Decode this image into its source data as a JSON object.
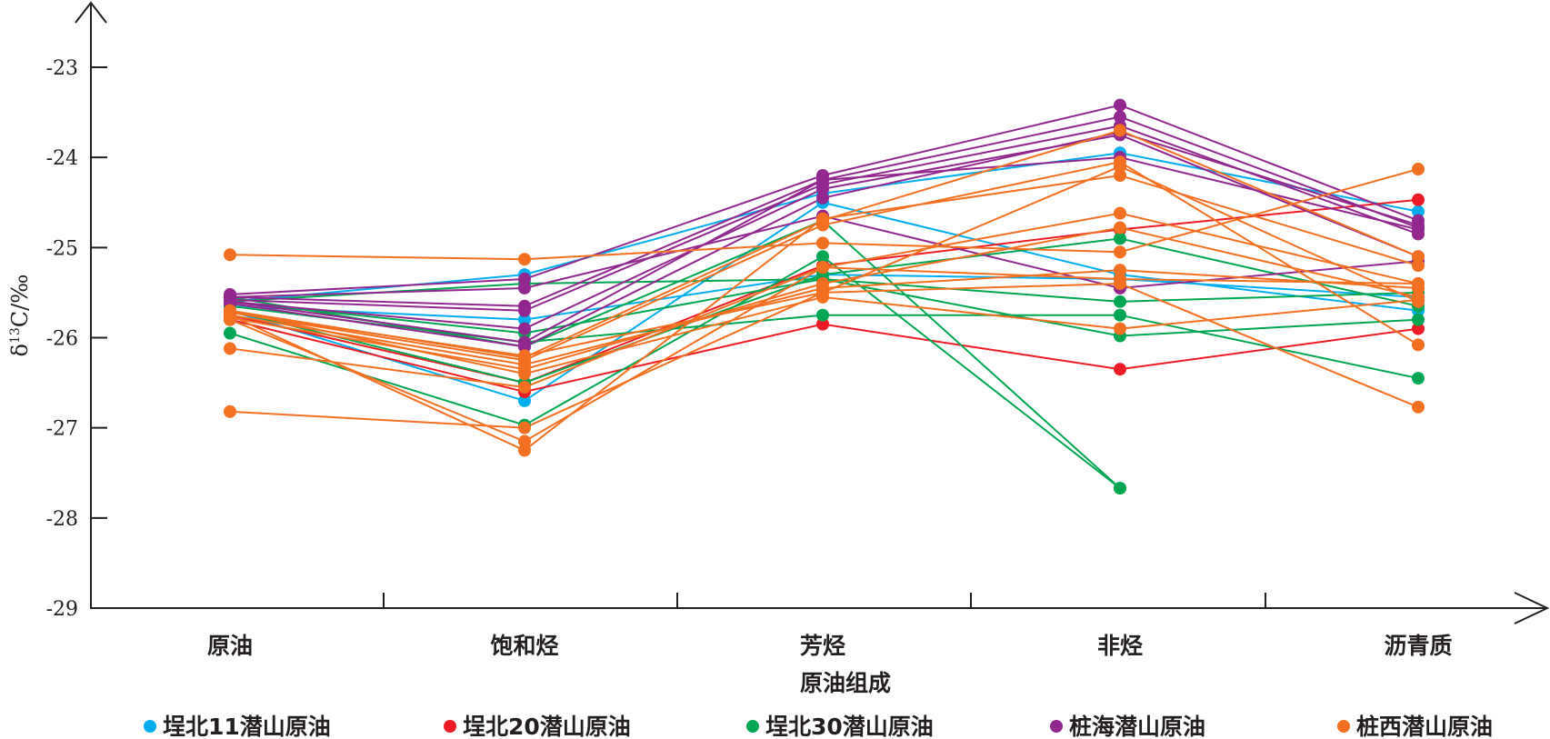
{
  "chart_data": {
    "type": "line",
    "xlabel": "原油组成",
    "ylabel": {
      "delta": "δ",
      "sup": "13",
      "rest": "C/‰"
    },
    "ylim": [
      -29,
      -22.4
    ],
    "yticks": [
      -29,
      -28,
      -27,
      -26,
      -25,
      -24,
      -23
    ],
    "categories": [
      "原油",
      "饱和烃",
      "芳烃",
      "非烃",
      "沥青质"
    ],
    "legend_position": "bottom",
    "grid": false,
    "groups": [
      {
        "name": "埕北11潜山原油",
        "color": "#00aeef"
      },
      {
        "name": "埕北20潜山原油",
        "color": "#ed1c24"
      },
      {
        "name": "埕北30潜山原油",
        "color": "#00a651"
      },
      {
        "name": "桩海潜山原油",
        "color": "#92278f"
      },
      {
        "name": "桩西潜山原油",
        "color": "#f37021"
      }
    ],
    "series": [
      {
        "group": 0,
        "values": [
          -25.6,
          -25.3,
          -24.4,
          -23.95,
          -24.6
        ]
      },
      {
        "group": 0,
        "values": [
          -25.7,
          -26.7,
          -24.5,
          -25.3,
          -25.7
        ]
      },
      {
        "group": 0,
        "values": [
          -25.65,
          -25.8,
          -25.3,
          -25.35,
          -25.55
        ]
      },
      {
        "group": 1,
        "values": [
          -25.8,
          -26.6,
          -25.85,
          -26.35,
          -25.9
        ]
      },
      {
        "group": 1,
        "values": [
          -25.75,
          -26.5,
          -25.2,
          -24.8,
          -24.47
        ]
      },
      {
        "group": 2,
        "values": [
          -25.95,
          -26.97,
          -25.1,
          -27.67,
          null
        ]
      },
      {
        "group": 2,
        "values": [
          -25.55,
          -26.1,
          -24.7,
          -27.67,
          null
        ]
      },
      {
        "group": 2,
        "values": [
          -25.6,
          -25.95,
          -25.35,
          -25.6,
          -25.5
        ]
      },
      {
        "group": 2,
        "values": [
          -25.65,
          -26.05,
          -25.75,
          -25.75,
          -26.45
        ]
      },
      {
        "group": 2,
        "values": [
          -25.7,
          -26.5,
          -25.3,
          -24.9,
          -25.65
        ]
      },
      {
        "group": 2,
        "values": [
          -25.6,
          -25.4,
          -25.35,
          -25.98,
          -25.8
        ]
      },
      {
        "group": 3,
        "values": [
          -25.52,
          -25.35,
          -24.2,
          -23.42,
          -24.7
        ]
      },
      {
        "group": 3,
        "values": [
          -25.55,
          -25.65,
          -24.25,
          -23.55,
          -24.78
        ]
      },
      {
        "group": 3,
        "values": [
          -25.58,
          -25.7,
          -24.3,
          -23.65,
          -24.85
        ]
      },
      {
        "group": 3,
        "values": [
          -25.6,
          -25.9,
          -24.35,
          -23.75,
          -25.1
        ]
      },
      {
        "group": 3,
        "values": [
          -25.62,
          -26.1,
          -24.45,
          -23.72,
          -24.75
        ]
      },
      {
        "group": 3,
        "values": [
          -25.55,
          -25.45,
          -24.65,
          -25.45,
          -25.15
        ]
      },
      {
        "group": 3,
        "values": [
          -25.6,
          -26.05,
          -24.25,
          -24.0,
          -24.8
        ]
      },
      {
        "group": 4,
        "values": [
          -25.08,
          -25.13,
          -24.95,
          -25.05,
          -24.13
        ]
      },
      {
        "group": 4,
        "values": [
          -26.12,
          -26.55,
          -25.22,
          -24.62,
          -25.4
        ]
      },
      {
        "group": 4,
        "values": [
          -26.82,
          -27.0,
          -25.5,
          -25.4,
          -26.77
        ]
      },
      {
        "group": 4,
        "values": [
          -25.7,
          -26.22,
          -24.7,
          -23.7,
          -25.1
        ]
      },
      {
        "group": 4,
        "values": [
          -25.72,
          -26.25,
          -24.75,
          -24.05,
          -26.08
        ]
      },
      {
        "group": 4,
        "values": [
          -25.75,
          -26.3,
          -25.45,
          -25.25,
          -25.45
        ]
      },
      {
        "group": 4,
        "values": [
          -25.78,
          -26.35,
          -25.4,
          -24.78,
          -25.55
        ]
      },
      {
        "group": 4,
        "values": [
          -25.7,
          -26.4,
          -25.55,
          -25.9,
          -25.58
        ]
      },
      {
        "group": 4,
        "values": [
          -25.8,
          -27.15,
          -25.22,
          -25.35,
          -25.4
        ]
      },
      {
        "group": 4,
        "values": [
          -25.75,
          -27.25,
          -24.68,
          -24.2,
          -25.2
        ]
      },
      {
        "group": 4,
        "values": [
          -25.72,
          -26.2,
          -25.5,
          -24.1,
          -25.6
        ]
      }
    ]
  }
}
